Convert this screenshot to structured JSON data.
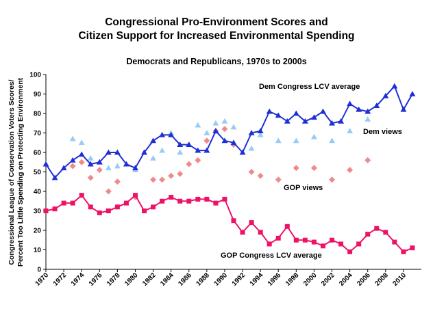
{
  "chart_data": {
    "type": "line",
    "title_line1": "Congressional Pro-Environment Scores and",
    "title_line2": "Citizen Support for Increased Environmental Spending",
    "subtitle": "Democrats and Republicans, 1970s to 2000s",
    "ylabel_line1": "Congressional League of Conservation Voters Scores/",
    "ylabel_line2": "Percent Too Little Spending on Protecting Environment",
    "xlim": [
      1970,
      2012
    ],
    "ylim": [
      0,
      100
    ],
    "x_ticks": [
      1970,
      1972,
      1974,
      1976,
      1978,
      1980,
      1982,
      1984,
      1986,
      1988,
      1990,
      1992,
      1994,
      1996,
      1998,
      2000,
      2002,
      2004,
      2006,
      2008,
      2010
    ],
    "y_ticks": [
      0,
      10,
      20,
      30,
      40,
      50,
      60,
      70,
      80,
      90,
      100
    ],
    "grid": false,
    "series": [
      {
        "name": "Dem Congress LCV average",
        "color": "#1f2fd6",
        "marker": "triangle",
        "line": true,
        "x": [
          1970,
          1971,
          1972,
          1973,
          1974,
          1975,
          1976,
          1977,
          1978,
          1979,
          1980,
          1981,
          1982,
          1983,
          1984,
          1985,
          1986,
          1987,
          1988,
          1989,
          1990,
          1991,
          1992,
          1993,
          1994,
          1995,
          1996,
          1997,
          1998,
          1999,
          2000,
          2001,
          2002,
          2003,
          2004,
          2005,
          2006,
          2007,
          2008,
          2009,
          2010,
          2011
        ],
        "values": [
          54,
          47,
          52,
          56,
          59,
          54,
          55,
          60,
          60,
          54,
          52,
          60,
          66,
          69,
          69,
          64,
          64,
          61,
          61,
          71,
          66,
          65,
          60,
          70,
          71,
          81,
          79,
          76,
          80,
          76,
          78,
          81,
          75,
          76,
          85,
          82,
          81,
          84,
          89,
          94,
          82,
          90
        ]
      },
      {
        "name": "GOP Congress LCV average",
        "color": "#ee1166",
        "marker": "square",
        "line": true,
        "x": [
          1970,
          1971,
          1972,
          1973,
          1974,
          1975,
          1976,
          1977,
          1978,
          1979,
          1980,
          1981,
          1982,
          1983,
          1984,
          1985,
          1986,
          1987,
          1988,
          1989,
          1990,
          1991,
          1992,
          1993,
          1994,
          1995,
          1996,
          1997,
          1998,
          1999,
          2000,
          2001,
          2002,
          2003,
          2004,
          2005,
          2006,
          2007,
          2008,
          2009,
          2010,
          2011
        ],
        "values": [
          30,
          31,
          34,
          34,
          38,
          32,
          29,
          30,
          32,
          34,
          38,
          30,
          32,
          35,
          37,
          35,
          35,
          36,
          36,
          34,
          36,
          25,
          19,
          24,
          19,
          13,
          16,
          22,
          15,
          15,
          14,
          12,
          15,
          13,
          9,
          13,
          18,
          21,
          19,
          14,
          9,
          11
        ]
      },
      {
        "name": "Dem views",
        "color": "#99ccf5",
        "marker": "triangle",
        "line": false,
        "x": [
          1973,
          1974,
          1975,
          1976,
          1977,
          1978,
          1980,
          1982,
          1983,
          1984,
          1985,
          1986,
          1987,
          1988,
          1989,
          1990,
          1991,
          1993,
          1994,
          1996,
          1998,
          2000,
          2002,
          2004,
          2006
        ],
        "values": [
          67,
          65,
          57,
          55,
          52,
          53,
          51,
          57,
          61,
          70,
          60,
          64,
          74,
          70,
          75,
          76,
          73,
          62,
          69,
          66,
          66,
          68,
          66,
          71,
          77
        ]
      },
      {
        "name": "GOP views",
        "color": "#f08a8a",
        "marker": "diamond",
        "line": false,
        "x": [
          1973,
          1974,
          1975,
          1976,
          1977,
          1978,
          1980,
          1982,
          1983,
          1984,
          1985,
          1986,
          1987,
          1988,
          1989,
          1990,
          1991,
          1993,
          1994,
          1996,
          1998,
          2000,
          2002,
          2004,
          2006
        ],
        "values": [
          53,
          55,
          47,
          51,
          40,
          45,
          37,
          46,
          46,
          48,
          49,
          54,
          56,
          66,
          71,
          72,
          64,
          50,
          48,
          46,
          52,
          52,
          46,
          51,
          56
        ]
      }
    ],
    "annotations": {
      "dem_congress": "Dem Congress LCV average",
      "dem_views": "Dem views",
      "gop_views": "GOP views",
      "gop_congress": "GOP Congress LCV average"
    }
  }
}
